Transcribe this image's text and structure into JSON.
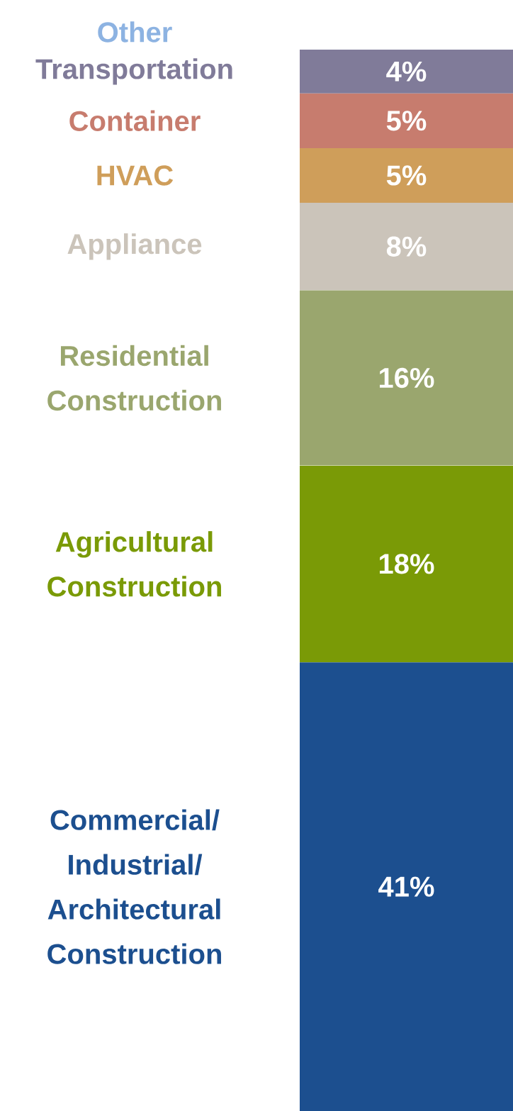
{
  "chart_data": {
    "type": "bar",
    "stacked": true,
    "categories": [
      null
    ],
    "series": [
      {
        "name": "Commercial/ Industrial/ Architectural Construction",
        "color": "#1c4f8f",
        "values": [
          41
        ],
        "value_labels": [
          "41%"
        ]
      },
      {
        "name": "Agricultural Construction",
        "color": "#7a9a06",
        "values": [
          18
        ],
        "value_labels": [
          "18%"
        ]
      },
      {
        "name": "Residential Construction",
        "color": "#9aa66e",
        "values": [
          16
        ],
        "value_labels": [
          "16%"
        ]
      },
      {
        "name": "Appliance",
        "color": "#cbc4ba",
        "values": [
          8
        ],
        "value_labels": [
          "8%"
        ]
      },
      {
        "name": "HVAC",
        "color": "#cf9e5a",
        "values": [
          5
        ],
        "value_labels": [
          "5%"
        ]
      },
      {
        "name": "Container",
        "color": "#c77c6e",
        "values": [
          5
        ],
        "value_labels": [
          "5%"
        ]
      },
      {
        "name": "Transportation",
        "color": "#807b99",
        "values": [
          4
        ],
        "value_labels": [
          "4%"
        ]
      },
      {
        "name": "Other",
        "color": "#8db3e2",
        "values": [
          null
        ]
      }
    ]
  }
}
